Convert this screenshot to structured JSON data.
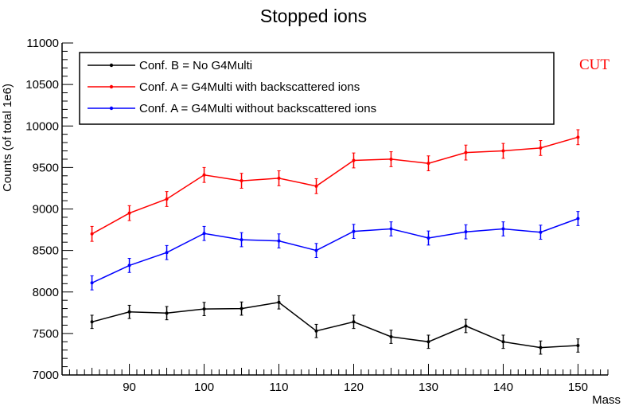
{
  "chart_data": {
    "type": "line",
    "title": "Stopped ions",
    "xlabel": "Mass",
    "ylabel": "Counts (of total 1e6)",
    "annotation": "CUT",
    "xlim": [
      81,
      154
    ],
    "ylim": [
      7000,
      11000
    ],
    "x_ticks": [
      90,
      100,
      110,
      120,
      130,
      140,
      150
    ],
    "y_ticks": [
      7000,
      7500,
      8000,
      8500,
      9000,
      9500,
      10000,
      10500,
      11000
    ],
    "x": [
      85,
      90,
      95,
      100,
      105,
      110,
      115,
      120,
      125,
      130,
      135,
      140,
      145,
      150
    ],
    "series": [
      {
        "name": "Conf. B = No G4Multi",
        "color": "#000000",
        "values": [
          7640,
          7760,
          7745,
          7795,
          7800,
          7875,
          7530,
          7640,
          7460,
          7400,
          7590,
          7400,
          7330,
          7355
        ],
        "errors": [
          80,
          80,
          80,
          80,
          80,
          80,
          80,
          80,
          80,
          80,
          80,
          80,
          80,
          80
        ]
      },
      {
        "name": "Conf. A = G4Multi with backscattered ions",
        "color": "#ff0000",
        "values": [
          8700,
          8950,
          9120,
          9410,
          9340,
          9370,
          9275,
          9585,
          9600,
          9550,
          9680,
          9700,
          9735,
          9865
        ],
        "errors": [
          90,
          90,
          90,
          90,
          90,
          90,
          90,
          90,
          90,
          90,
          90,
          90,
          90,
          90
        ]
      },
      {
        "name": "Conf. A = G4Multi without backscattered ions",
        "color": "#0000ff",
        "values": [
          8110,
          8320,
          8475,
          8705,
          8630,
          8615,
          8500,
          8730,
          8760,
          8650,
          8725,
          8760,
          8720,
          8885
        ],
        "errors": [
          85,
          85,
          85,
          85,
          85,
          85,
          85,
          85,
          85,
          85,
          85,
          85,
          85,
          85
        ]
      }
    ]
  }
}
